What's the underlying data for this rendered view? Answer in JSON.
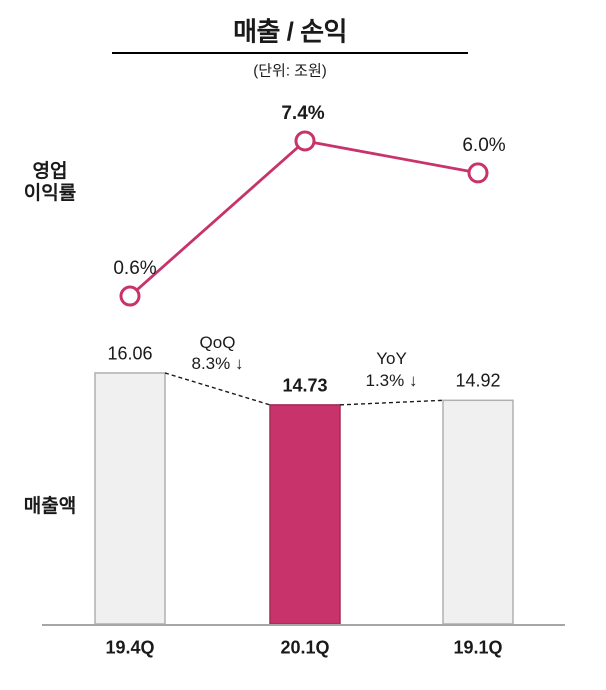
{
  "title": "매출 / 손익",
  "subtitle": "(단위: 조원)",
  "row_labels": {
    "line1": "영업",
    "line2": "이익률",
    "bar": "매출액"
  },
  "colors": {
    "accent": "#C7336A",
    "accent_border": "#A62A56",
    "bar_fill": "#F0F0F0",
    "bar_border": "#B0B0B0",
    "axis": "#A6A6A6",
    "connector": "#1A1A1A",
    "text": "#1A1A1A"
  },
  "chart_data": [
    {
      "type": "line",
      "name": "operating-profit-margin",
      "ylabel": "영업 이익률",
      "unit": "%",
      "categories": [
        "19.4Q",
        "20.1Q",
        "19.1Q"
      ],
      "values": [
        0.6,
        7.4,
        6.0
      ],
      "point_labels": [
        "0.6%",
        "7.4%",
        "6.0%"
      ],
      "emphasized_index": 1,
      "grid": false,
      "legend": false
    },
    {
      "type": "bar",
      "name": "revenue",
      "ylabel": "매출액",
      "unit": "조원",
      "categories": [
        "19.4Q",
        "20.1Q",
        "19.1Q"
      ],
      "values": [
        16.06,
        14.73,
        14.92
      ],
      "value_labels": [
        "16.06",
        "14.73",
        "14.92"
      ],
      "highlighted_index": 1,
      "grid": false,
      "legend": false,
      "annotations": [
        {
          "between": [
            "19.4Q",
            "20.1Q"
          ],
          "line1": "QoQ",
          "line2": "8.3% ↓"
        },
        {
          "between": [
            "20.1Q",
            "19.1Q"
          ],
          "line1": "YoY",
          "line2": "1.3% ↓"
        }
      ]
    }
  ]
}
